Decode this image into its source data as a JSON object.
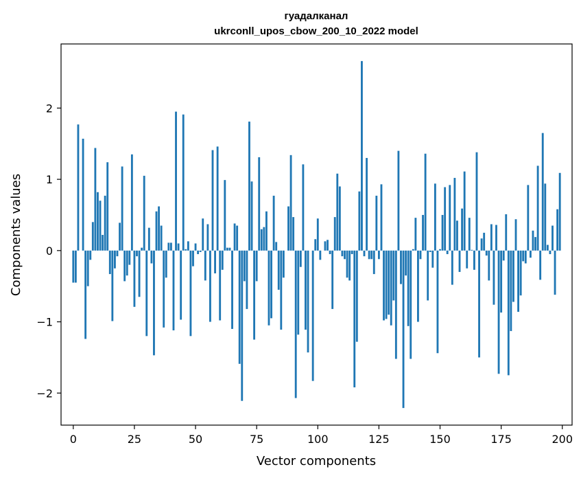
{
  "chart_data": {
    "type": "bar",
    "title": "гуадалканал",
    "subtitle": "ukrconll_upos_cbow_200_10_2022 model",
    "xlabel": "Vector components",
    "ylabel": "Components values",
    "xlim": [
      -5,
      204
    ],
    "ylim": [
      -2.45,
      2.9
    ],
    "xticks": [
      0,
      25,
      50,
      75,
      100,
      125,
      150,
      175,
      200
    ],
    "yticks": [
      -2,
      -1,
      0,
      1,
      2
    ],
    "xtick_labels": [
      "0",
      "25",
      "50",
      "75",
      "100",
      "125",
      "150",
      "175",
      "200"
    ],
    "ytick_labels": [
      "−2",
      "−1",
      "0",
      "1",
      "2"
    ],
    "grid": false,
    "bar_color": "#1f77b4",
    "values": [
      -0.45,
      -0.45,
      1.77,
      0.0,
      1.57,
      -1.24,
      -0.5,
      -0.13,
      0.4,
      1.44,
      0.82,
      0.7,
      0.22,
      0.77,
      1.24,
      -0.33,
      -0.99,
      -0.25,
      -0.08,
      0.39,
      1.18,
      -0.43,
      -0.35,
      -0.2,
      1.35,
      -0.79,
      -0.08,
      -0.65,
      0.04,
      1.05,
      -1.2,
      0.32,
      -0.18,
      -1.47,
      0.55,
      0.62,
      0.35,
      -1.08,
      -0.38,
      0.11,
      0.11,
      -1.12,
      1.95,
      0.1,
      -0.97,
      1.91,
      0.02,
      0.13,
      -1.2,
      -0.22,
      0.1,
      -0.05,
      -0.02,
      0.45,
      -0.42,
      0.37,
      -1.0,
      1.41,
      -0.32,
      1.46,
      -0.98,
      -0.27,
      0.99,
      0.04,
      0.04,
      -1.1,
      0.38,
      0.35,
      -1.59,
      -2.11,
      -0.43,
      -0.82,
      1.81,
      0.97,
      -1.25,
      -0.43,
      1.31,
      0.3,
      0.33,
      0.55,
      -1.05,
      -0.95,
      0.77,
      0.12,
      -0.55,
      -1.11,
      -0.38,
      0.0,
      0.62,
      1.34,
      0.47,
      -2.07,
      -1.18,
      -0.23,
      1.21,
      -1.11,
      -1.43,
      0.0,
      -1.83,
      0.16,
      0.45,
      -0.13,
      0.0,
      0.13,
      0.15,
      -0.05,
      -0.82,
      0.47,
      1.08,
      0.9,
      -0.08,
      -0.12,
      -0.38,
      -0.42,
      -0.05,
      -1.92,
      -1.28,
      0.83,
      2.66,
      -0.08,
      1.3,
      -0.12,
      -0.12,
      -0.33,
      0.77,
      -0.12,
      0.93,
      -0.98,
      -0.96,
      -0.9,
      -1.05,
      -0.7,
      -1.52,
      1.4,
      -0.47,
      -2.21,
      -0.35,
      -1.06,
      -1.52,
      0.02,
      0.46,
      -1.0,
      -0.12,
      0.5,
      1.36,
      -0.7,
      -0.02,
      -0.24,
      0.94,
      -1.44,
      0.02,
      0.5,
      0.89,
      -0.05,
      0.92,
      -0.48,
      1.02,
      0.42,
      -0.3,
      0.59,
      1.11,
      -0.25,
      0.46,
      0.01,
      -0.27,
      1.38,
      -1.5,
      0.17,
      0.25,
      -0.07,
      -0.42,
      0.37,
      -0.76,
      0.36,
      -1.73,
      -0.87,
      -0.14,
      0.51,
      -1.75,
      -1.13,
      -0.72,
      0.44,
      -0.86,
      -0.63,
      -0.15,
      -0.18,
      0.92,
      -0.1,
      0.28,
      0.19,
      1.19,
      -0.41,
      1.65,
      0.94,
      0.08,
      -0.05,
      0.35,
      -0.62,
      0.58,
      1.09
    ]
  }
}
